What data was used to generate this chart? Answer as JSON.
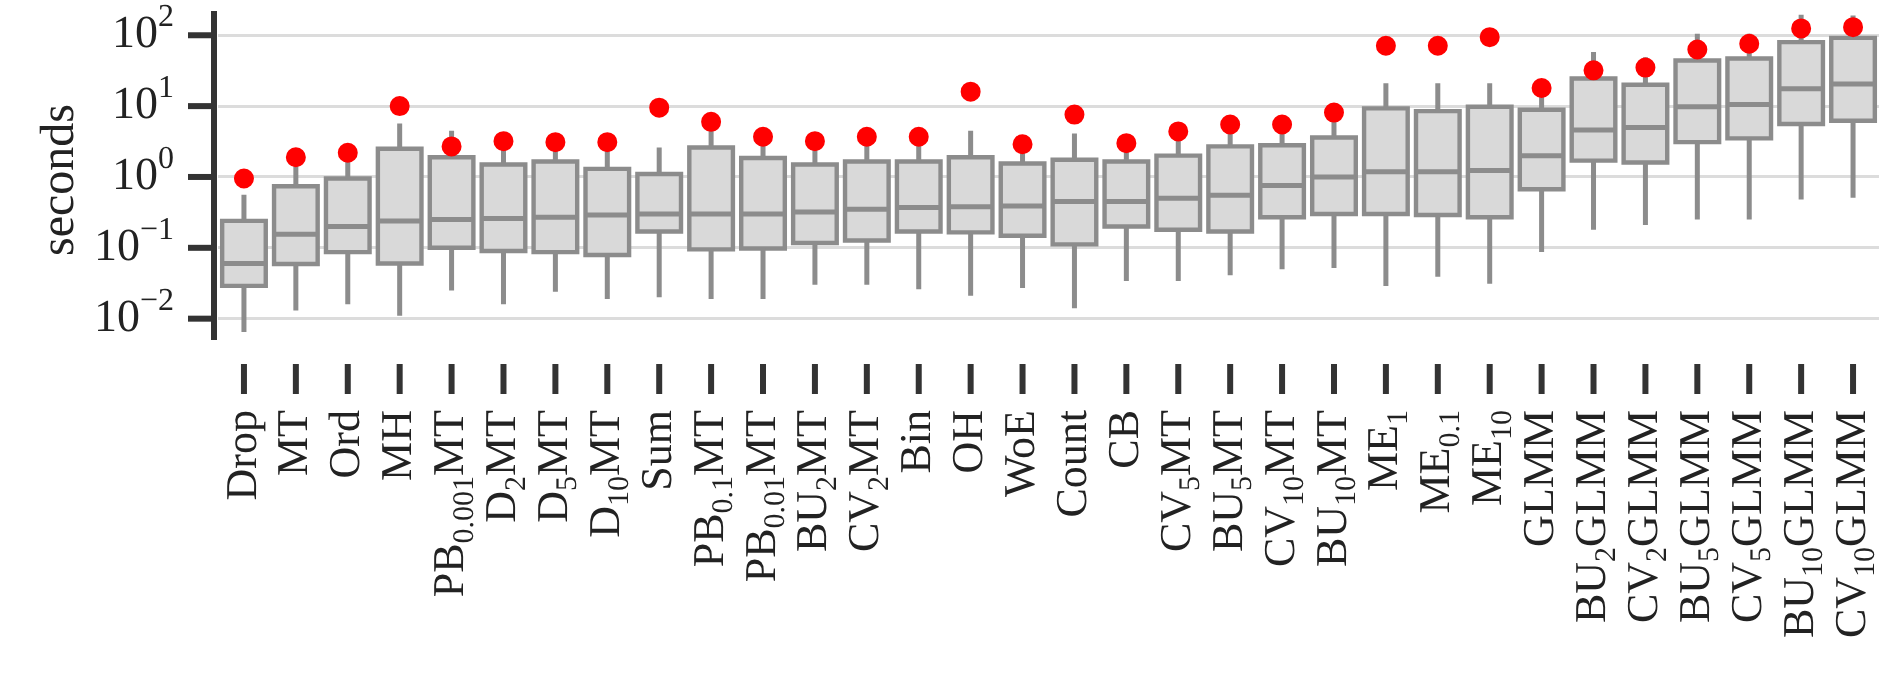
{
  "chart_data": {
    "type": "box",
    "ylabel": "seconds",
    "log": true,
    "grid": "y",
    "legend": false,
    "marker": "circle",
    "ylim": [
      0.005,
      220
    ],
    "yticks": [
      {
        "value": 0.01,
        "label": "10$^{−2}$"
      },
      {
        "value": 0.1,
        "label": "10$^{−1}$"
      },
      {
        "value": 1,
        "label": "10$^{0}$"
      },
      {
        "value": 10,
        "label": "10$^{1}$"
      },
      {
        "value": 100,
        "label": "10$^{2}$"
      }
    ],
    "categories": [
      "Drop",
      "MT",
      "Ord",
      "MH",
      "PB$_{0.001}$MT",
      "D$_{2}$MT",
      "D$_{5}$MT",
      "D$_{10}$MT",
      "Sum",
      "PB$_{0.1}$MT",
      "PB$_{0.01}$MT",
      "BU$_{2}$MT",
      "CV$_{2}$MT",
      "Bin",
      "OH",
      "WoE",
      "Count",
      "CB",
      "CV$_{5}$MT",
      "BU$_{5}$MT",
      "CV$_{10}$MT",
      "BU$_{10}$MT",
      "ME$_{1}$",
      "ME$_{0.1}$",
      "ME$_{10}$",
      "GLMM",
      "BU$_{2}$GLMM",
      "CV$_{2}$GLMM",
      "BU$_{5}$GLMM",
      "CV$_{5}$GLMM",
      "BU$_{10}$GLMM",
      "CV$_{10}$GLMM"
    ],
    "series": [
      {
        "type": "box",
        "color": "#d9d9d9",
        "boxes": [
          {
            "low": 0.0065,
            "q1": 0.029,
            "median": 0.06,
            "q3": 0.24,
            "high": 0.56
          },
          {
            "low": 0.013,
            "q1": 0.059,
            "median": 0.155,
            "q3": 0.74,
            "high": 1.5
          },
          {
            "low": 0.016,
            "q1": 0.087,
            "median": 0.2,
            "q3": 0.95,
            "high": 1.7
          },
          {
            "low": 0.011,
            "q1": 0.06,
            "median": 0.24,
            "q3": 2.5,
            "high": 5.7
          },
          {
            "low": 0.025,
            "q1": 0.1,
            "median": 0.25,
            "q3": 1.9,
            "high": 4.5
          },
          {
            "low": 0.016,
            "q1": 0.09,
            "median": 0.26,
            "q3": 1.5,
            "high": 2.9
          },
          {
            "low": 0.024,
            "q1": 0.087,
            "median": 0.27,
            "q3": 1.65,
            "high": 2.8
          },
          {
            "low": 0.019,
            "q1": 0.079,
            "median": 0.29,
            "q3": 1.3,
            "high": 2.8
          },
          {
            "low": 0.02,
            "q1": 0.17,
            "median": 0.3,
            "q3": 1.1,
            "high": 2.6
          },
          {
            "low": 0.019,
            "q1": 0.095,
            "median": 0.3,
            "q3": 2.6,
            "high": 5.0
          },
          {
            "low": 0.019,
            "q1": 0.098,
            "median": 0.3,
            "q3": 1.85,
            "high": 3.3
          },
          {
            "low": 0.03,
            "q1": 0.117,
            "median": 0.32,
            "q3": 1.5,
            "high": 2.9
          },
          {
            "low": 0.03,
            "q1": 0.127,
            "median": 0.35,
            "q3": 1.65,
            "high": 3.3
          },
          {
            "low": 0.026,
            "q1": 0.17,
            "median": 0.37,
            "q3": 1.65,
            "high": 3.3
          },
          {
            "low": 0.021,
            "q1": 0.165,
            "median": 0.38,
            "q3": 1.9,
            "high": 4.5
          },
          {
            "low": 0.027,
            "q1": 0.148,
            "median": 0.39,
            "q3": 1.55,
            "high": 2.6
          },
          {
            "low": 0.014,
            "q1": 0.112,
            "median": 0.45,
            "q3": 1.75,
            "high": 4.1
          },
          {
            "low": 0.034,
            "q1": 0.2,
            "median": 0.45,
            "q3": 1.65,
            "high": 2.7
          },
          {
            "low": 0.034,
            "q1": 0.18,
            "median": 0.5,
            "q3": 2.0,
            "high": 3.9
          },
          {
            "low": 0.041,
            "q1": 0.17,
            "median": 0.55,
            "q3": 2.7,
            "high": 5.0
          },
          {
            "low": 0.05,
            "q1": 0.27,
            "median": 0.76,
            "q3": 2.8,
            "high": 5.0
          },
          {
            "low": 0.052,
            "q1": 0.3,
            "median": 1.0,
            "q3": 3.6,
            "high": 6.5
          },
          {
            "low": 0.029,
            "q1": 0.3,
            "median": 1.18,
            "q3": 9.3,
            "high": 21
          },
          {
            "low": 0.039,
            "q1": 0.29,
            "median": 1.18,
            "q3": 8.5,
            "high": 21
          },
          {
            "low": 0.031,
            "q1": 0.27,
            "median": 1.23,
            "q3": 9.8,
            "high": 21
          },
          {
            "low": 0.087,
            "q1": 0.67,
            "median": 2.0,
            "q3": 8.9,
            "high": 15
          },
          {
            "low": 0.18,
            "q1": 1.7,
            "median": 4.6,
            "q3": 24.5,
            "high": 58
          },
          {
            "low": 0.21,
            "q1": 1.6,
            "median": 5.0,
            "q3": 20,
            "high": 49
          },
          {
            "low": 0.25,
            "q1": 3.1,
            "median": 9.8,
            "q3": 44,
            "high": 105
          },
          {
            "low": 0.25,
            "q1": 3.5,
            "median": 10.5,
            "q3": 47,
            "high": 105
          },
          {
            "low": 0.48,
            "q1": 5.6,
            "median": 17.6,
            "q3": 80,
            "high": 194
          },
          {
            "low": 0.51,
            "q1": 6.2,
            "median": 20.5,
            "q3": 92,
            "high": 190
          }
        ]
      },
      {
        "type": "scatter",
        "color": "#ff0000",
        "x": [
          "Drop",
          "MT",
          "Ord",
          "MH",
          "PB$_{0.001}$MT",
          "D$_{2}$MT",
          "D$_{5}$MT",
          "D$_{10}$MT",
          "Sum",
          "PB$_{0.1}$MT",
          "PB$_{0.01}$MT",
          "BU$_{2}$MT",
          "CV$_{2}$MT",
          "Bin",
          "OH",
          "WoE",
          "Count",
          "CB",
          "CV$_{5}$MT",
          "BU$_{5}$MT",
          "CV$_{10}$MT",
          "BU$_{10}$MT",
          "ME$_{1}$",
          "ME$_{0.1}$",
          "ME$_{10}$",
          "GLMM",
          "BU$_{2}$GLMM",
          "CV$_{2}$GLMM",
          "BU$_{5}$GLMM",
          "CV$_{5}$GLMM",
          "BU$_{10}$GLMM",
          "CV$_{10}$GLMM"
        ],
        "values": [
          0.95,
          1.9,
          2.2,
          10,
          2.7,
          3.2,
          3.1,
          3.1,
          9.5,
          6.0,
          3.7,
          3.2,
          3.7,
          3.7,
          16,
          2.9,
          7.6,
          3.0,
          4.4,
          5.5,
          5.5,
          8.1,
          71,
          71,
          94,
          18,
          32,
          35,
          63,
          76,
          125,
          130
        ]
      }
    ]
  }
}
